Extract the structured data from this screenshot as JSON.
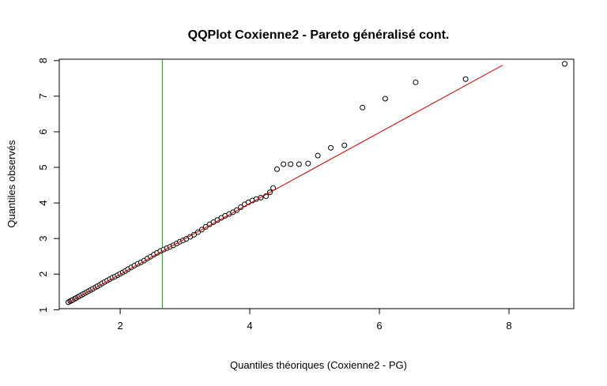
{
  "chart_data": {
    "type": "scatter",
    "title": "QQPlot Coxienne2 - Pareto généralisé cont.",
    "xlabel": "Quantiles théoriques (Coxienne2 - PG)",
    "ylabel": "Quantiles observés",
    "xlim": [
      1.06,
      9.0
    ],
    "ylim": [
      1.03,
      8.04
    ],
    "x_ticks": [
      2,
      4,
      6,
      8
    ],
    "y_ticks": [
      1,
      2,
      3,
      4,
      5,
      6,
      7,
      8
    ],
    "grid": false,
    "legend": "none",
    "point_color": "#000000",
    "point_fill": "#ffffff",
    "overlay_stroke_color": "#cc0000",
    "reference_line": {
      "color": "#cc0000",
      "from": {
        "x": 1.2,
        "y": 1.2
      },
      "to": {
        "x": 7.9,
        "y": 7.87
      }
    },
    "threshold_line": {
      "color": "#00aa00",
      "x": 2.65
    },
    "points": [
      {
        "x": 1.2,
        "y": 1.21
      },
      {
        "x": 1.23,
        "y": 1.24
      },
      {
        "x": 1.25,
        "y": 1.26
      },
      {
        "x": 1.27,
        "y": 1.28
      },
      {
        "x": 1.3,
        "y": 1.31
      },
      {
        "x": 1.32,
        "y": 1.33
      },
      {
        "x": 1.35,
        "y": 1.36
      },
      {
        "x": 1.37,
        "y": 1.38
      },
      {
        "x": 1.4,
        "y": 1.41
      },
      {
        "x": 1.43,
        "y": 1.44
      },
      {
        "x": 1.46,
        "y": 1.47
      },
      {
        "x": 1.49,
        "y": 1.5
      },
      {
        "x": 1.52,
        "y": 1.53
      },
      {
        "x": 1.55,
        "y": 1.56
      },
      {
        "x": 1.58,
        "y": 1.59
      },
      {
        "x": 1.62,
        "y": 1.63
      },
      {
        "x": 1.65,
        "y": 1.66
      },
      {
        "x": 1.69,
        "y": 1.7
      },
      {
        "x": 1.72,
        "y": 1.74
      },
      {
        "x": 1.76,
        "y": 1.78
      },
      {
        "x": 1.8,
        "y": 1.82
      },
      {
        "x": 1.84,
        "y": 1.86
      },
      {
        "x": 1.88,
        "y": 1.9
      },
      {
        "x": 1.92,
        "y": 1.93
      },
      {
        "x": 1.96,
        "y": 1.97
      },
      {
        "x": 2.0,
        "y": 2.01
      },
      {
        "x": 2.04,
        "y": 2.05
      },
      {
        "x": 2.08,
        "y": 2.09
      },
      {
        "x": 2.12,
        "y": 2.14
      },
      {
        "x": 2.17,
        "y": 2.19
      },
      {
        "x": 2.22,
        "y": 2.24
      },
      {
        "x": 2.27,
        "y": 2.29
      },
      {
        "x": 2.32,
        "y": 2.33
      },
      {
        "x": 2.37,
        "y": 2.38
      },
      {
        "x": 2.42,
        "y": 2.44
      },
      {
        "x": 2.47,
        "y": 2.49
      },
      {
        "x": 2.52,
        "y": 2.55
      },
      {
        "x": 2.57,
        "y": 2.6
      },
      {
        "x": 2.62,
        "y": 2.65
      },
      {
        "x": 2.67,
        "y": 2.69
      },
      {
        "x": 2.72,
        "y": 2.73
      },
      {
        "x": 2.77,
        "y": 2.77
      },
      {
        "x": 2.82,
        "y": 2.81
      },
      {
        "x": 2.87,
        "y": 2.86
      },
      {
        "x": 2.92,
        "y": 2.91
      },
      {
        "x": 2.97,
        "y": 2.95
      },
      {
        "x": 3.02,
        "y": 2.99
      },
      {
        "x": 3.08,
        "y": 3.05
      },
      {
        "x": 3.14,
        "y": 3.11
      },
      {
        "x": 3.2,
        "y": 3.18
      },
      {
        "x": 3.26,
        "y": 3.25
      },
      {
        "x": 3.32,
        "y": 3.33
      },
      {
        "x": 3.38,
        "y": 3.4
      },
      {
        "x": 3.44,
        "y": 3.46
      },
      {
        "x": 3.5,
        "y": 3.52
      },
      {
        "x": 3.56,
        "y": 3.58
      },
      {
        "x": 3.62,
        "y": 3.64
      },
      {
        "x": 3.68,
        "y": 3.69
      },
      {
        "x": 3.74,
        "y": 3.74
      },
      {
        "x": 3.8,
        "y": 3.8
      },
      {
        "x": 3.86,
        "y": 3.88
      },
      {
        "x": 3.92,
        "y": 3.96
      },
      {
        "x": 3.98,
        "y": 4.02
      },
      {
        "x": 4.04,
        "y": 4.07
      },
      {
        "x": 4.1,
        "y": 4.11
      },
      {
        "x": 4.17,
        "y": 4.15
      },
      {
        "x": 4.25,
        "y": 4.19
      },
      {
        "x": 4.31,
        "y": 4.3
      },
      {
        "x": 4.36,
        "y": 4.42
      },
      {
        "x": 4.42,
        "y": 4.95
      },
      {
        "x": 4.52,
        "y": 5.09
      },
      {
        "x": 4.63,
        "y": 5.09
      },
      {
        "x": 4.76,
        "y": 5.09
      },
      {
        "x": 4.9,
        "y": 5.11
      },
      {
        "x": 5.05,
        "y": 5.33
      },
      {
        "x": 5.25,
        "y": 5.55
      },
      {
        "x": 5.46,
        "y": 5.62
      },
      {
        "x": 5.74,
        "y": 6.68
      },
      {
        "x": 6.09,
        "y": 6.93
      },
      {
        "x": 6.56,
        "y": 7.39
      },
      {
        "x": 7.33,
        "y": 7.48
      },
      {
        "x": 8.86,
        "y": 7.91
      }
    ]
  }
}
